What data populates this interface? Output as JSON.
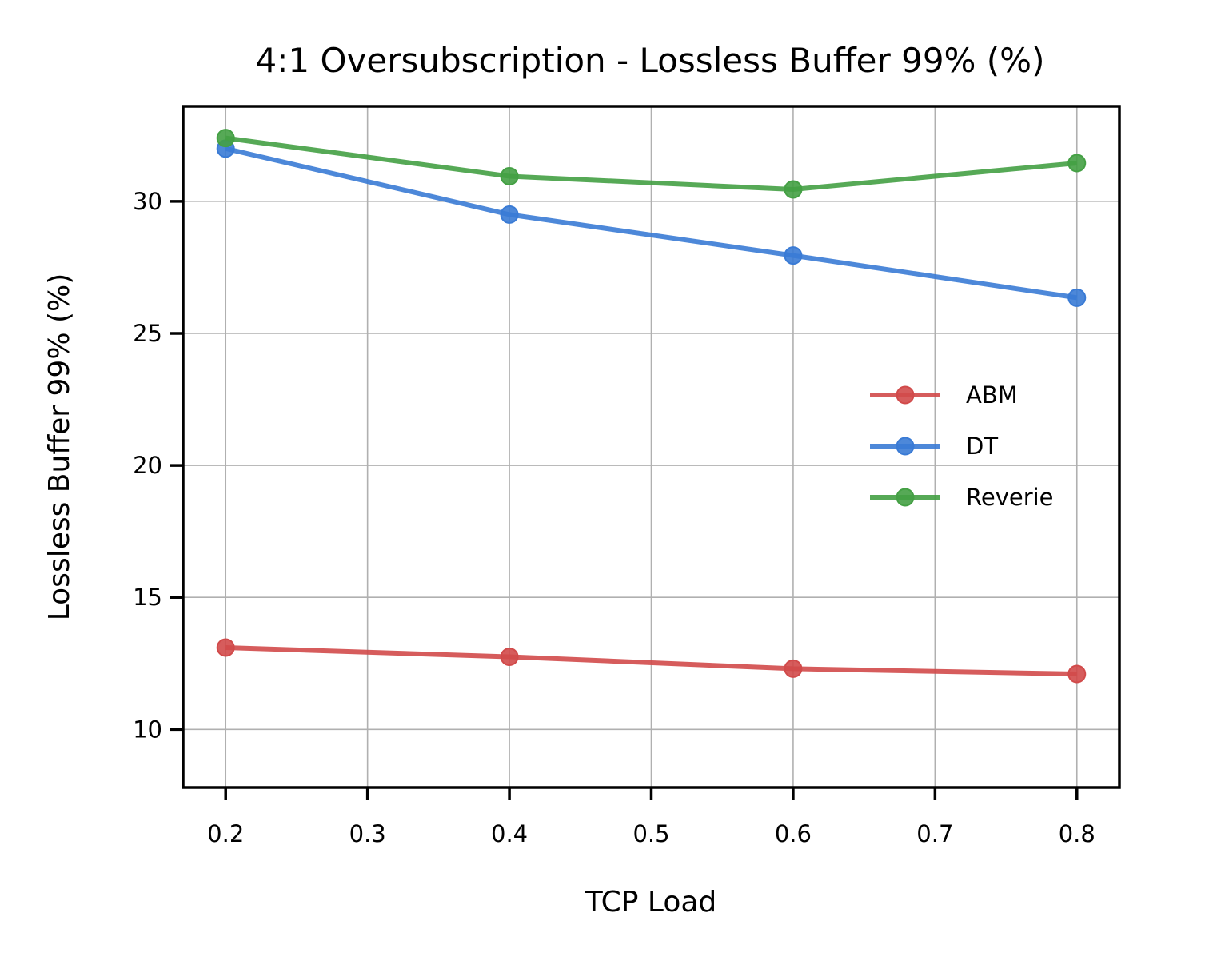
{
  "chart_data": {
    "type": "line",
    "title": "4:1 Oversubscription - Lossless Buffer 99% (%)",
    "xlabel": "TCP Load",
    "ylabel": "Lossless Buffer 99% (%)",
    "x": [
      0.2,
      0.4,
      0.6,
      0.8
    ],
    "xlim": [
      0.17,
      0.83
    ],
    "ylim": [
      7.8,
      33.6
    ],
    "xticks": [
      0.2,
      0.3,
      0.4,
      0.5,
      0.6,
      0.7,
      0.8
    ],
    "xtick_labels": [
      "0.2",
      "0.3",
      "0.4",
      "0.5",
      "0.6",
      "0.7",
      "0.8"
    ],
    "yticks": [
      10,
      15,
      20,
      25,
      30
    ],
    "ytick_labels": [
      "10",
      "15",
      "20",
      "25",
      "30"
    ],
    "grid": true,
    "legend_position": "center-right",
    "series": [
      {
        "name": "ABM",
        "color": "#d14a4a",
        "values": [
          13.1,
          12.75,
          12.3,
          12.1
        ]
      },
      {
        "name": "DT",
        "color": "#3a7bd5",
        "values": [
          32.0,
          29.5,
          27.95,
          26.35
        ]
      },
      {
        "name": "Reverie",
        "color": "#44a044",
        "values": [
          32.4,
          30.95,
          30.45,
          31.45
        ]
      }
    ]
  }
}
